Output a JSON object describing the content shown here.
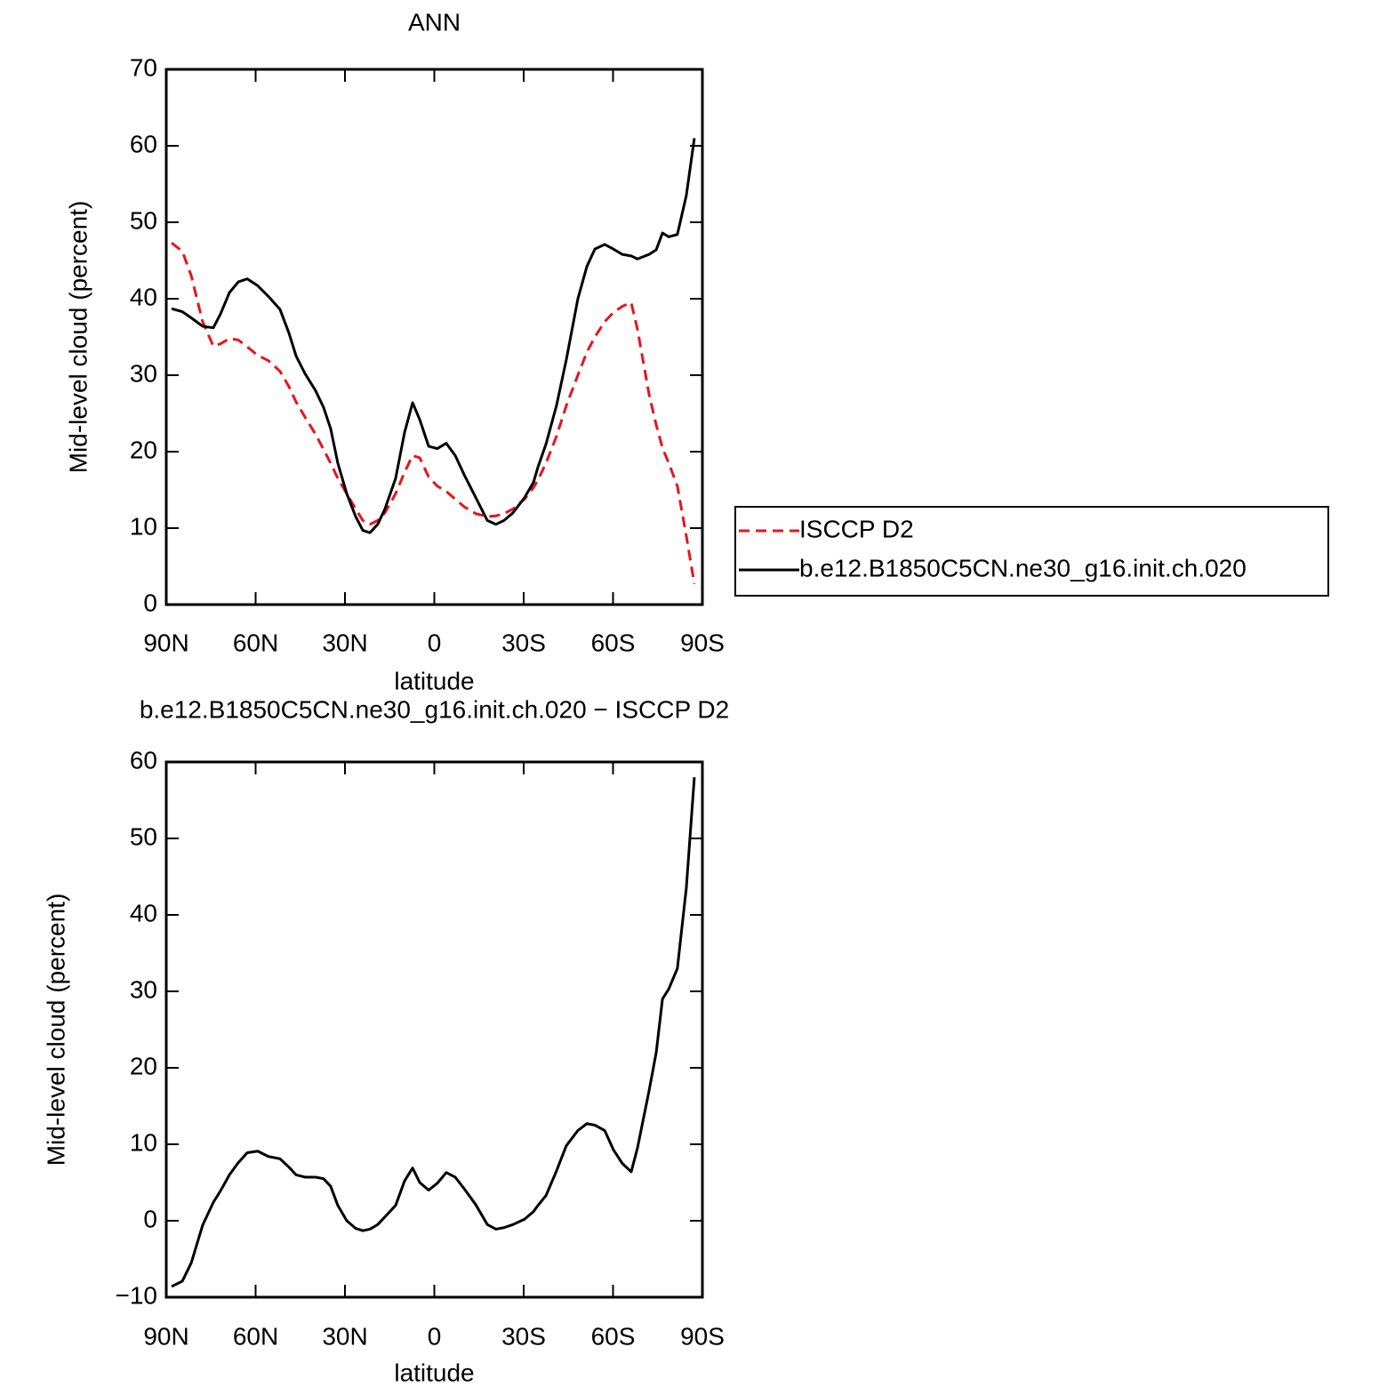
{
  "chart_data": [
    {
      "type": "line",
      "title": "ANN",
      "xlabel": "latitude",
      "ylabel": "Mid-level cloud (percent)",
      "xlim": [
        90,
        -90
      ],
      "xticks": [
        {
          "value": 90,
          "label": "90N"
        },
        {
          "value": 60,
          "label": "60N"
        },
        {
          "value": 30,
          "label": "30N"
        },
        0,
        {
          "value": -30,
          "label": "30S"
        },
        {
          "value": -60,
          "label": "60S"
        },
        {
          "value": -90,
          "label": "90S"
        }
      ],
      "ylim": [
        0,
        70
      ],
      "yticks": [
        0,
        10,
        20,
        30,
        40,
        50,
        60,
        70
      ],
      "legend": "outside right",
      "x": [
        88.2,
        84.6,
        81.6,
        77.8,
        74.2,
        71.8,
        68.8,
        65.8,
        62.8,
        59.3,
        55.7,
        51.8,
        48.8,
        46.4,
        43.4,
        39.9,
        37.2,
        34.8,
        32.4,
        29.4,
        26.4,
        24,
        21.6,
        19,
        16.6,
        13,
        10,
        7.3,
        4.9,
        1.9,
        -1,
        -4,
        -7,
        -10,
        -13.9,
        -17.8,
        -20.7,
        -23.4,
        -26.4,
        -30.3,
        -33.3,
        -34.8,
        -37.5,
        -41,
        -44.3,
        -48.2,
        -51.2,
        -53.9,
        -57.2,
        -60.1,
        -63.1,
        -66.1,
        -68.2,
        -72.1,
        -74.5,
        -76.6,
        -78.7,
        -81.6,
        -84.6,
        -87.3
      ],
      "series": [
        {
          "name": "ISCCP D2",
          "color": "#e8141b",
          "dashed": true,
          "values": [
            47.3,
            46.2,
            43,
            37,
            33.8,
            34.1,
            34.8,
            34.6,
            33.7,
            32.6,
            31.9,
            30.5,
            28.5,
            26.5,
            24.5,
            22.3,
            20.3,
            18.5,
            16.5,
            14.5,
            12.5,
            11,
            10.5,
            11,
            12,
            14.5,
            17.3,
            19.5,
            19.2,
            16.7,
            15.5,
            14.8,
            13.8,
            12.8,
            11.9,
            11.5,
            11.6,
            11.9,
            12.5,
            13.8,
            15.3,
            16.3,
            18.5,
            22,
            26,
            30,
            33,
            35,
            37,
            38.2,
            39,
            39.5,
            36,
            27.5,
            23.5,
            20.5,
            18.5,
            15.5,
            9,
            2.7
          ]
        },
        {
          "name": "b.e12.B1850C5CN.ne30_g16.init.ch.020",
          "color": "#000000",
          "dashed": false,
          "values": [
            38.7,
            38.3,
            37.5,
            36.4,
            36.2,
            38,
            40.8,
            42.2,
            42.6,
            41.7,
            40.3,
            38.6,
            35.5,
            32.5,
            30.2,
            28,
            25.8,
            23,
            18.5,
            14.5,
            11.5,
            9.7,
            9.4,
            10.5,
            12.5,
            16.5,
            22.5,
            26.4,
            24.2,
            20.7,
            20.4,
            21.1,
            19.5,
            17,
            14,
            11,
            10.5,
            11,
            12,
            14,
            16,
            18,
            21,
            26,
            32,
            40,
            44.2,
            46.5,
            47.1,
            46.5,
            45.8,
            45.6,
            45.2,
            45.8,
            46.4,
            48.6,
            48.1,
            48.4,
            53.5,
            61
          ]
        }
      ]
    },
    {
      "type": "line",
      "title": "b.e12.B1850C5CN.ne30_g16.init.ch.020 − ISCCP D2",
      "xlabel": "latitude",
      "ylabel": "Mid-level cloud (percent)",
      "xlim": [
        90,
        -90
      ],
      "xticks": [
        {
          "value": 90,
          "label": "90N"
        },
        {
          "value": 60,
          "label": "60N"
        },
        {
          "value": 30,
          "label": "30N"
        },
        0,
        {
          "value": -30,
          "label": "30S"
        },
        {
          "value": -60,
          "label": "60S"
        },
        {
          "value": -90,
          "label": "90S"
        }
      ],
      "ylim": [
        -10,
        60
      ],
      "yticks": [
        {
          "value": -10,
          "label": "−10"
        },
        0,
        10,
        20,
        30,
        40,
        50,
        60
      ],
      "x": [
        88.2,
        84.6,
        81.6,
        77.8,
        74.2,
        71.8,
        68.8,
        65.8,
        62.8,
        59.3,
        55.7,
        51.8,
        48.8,
        46.4,
        43.4,
        39.9,
        37.2,
        34.8,
        32.4,
        29.4,
        26.4,
        24,
        21.6,
        19,
        16.6,
        13,
        10,
        7.3,
        4.9,
        1.9,
        -1,
        -4,
        -7,
        -10,
        -13.9,
        -17.8,
        -20.7,
        -23.4,
        -26.4,
        -30.3,
        -33.3,
        -34.8,
        -37.5,
        -41,
        -44.3,
        -48.2,
        -51.2,
        -53.9,
        -57.2,
        -60.1,
        -63.1,
        -66.1,
        -68.2,
        -72.1,
        -74.5,
        -76.6,
        -78.7,
        -81.6,
        -84.6,
        -87.3
      ],
      "series": [
        {
          "color": "#000000",
          "dashed": false,
          "values": [
            -8.6,
            -7.9,
            -5.5,
            -0.6,
            2.4,
            3.9,
            6,
            7.6,
            8.9,
            9.1,
            8.4,
            8.1,
            7,
            6,
            5.7,
            5.7,
            5.5,
            4.5,
            2,
            0,
            -1,
            -1.3,
            -1.1,
            -0.5,
            0.5,
            2,
            5.2,
            6.9,
            5,
            4,
            4.9,
            6.3,
            5.7,
            4.2,
            2.1,
            -0.5,
            -1.1,
            -0.9,
            -0.5,
            0.2,
            1.2,
            2,
            3.3,
            6.5,
            9.8,
            11.8,
            12.7,
            12.5,
            11.8,
            9.3,
            7.5,
            6.4,
            9.5,
            17,
            22,
            29,
            30.3,
            33,
            43.5,
            58
          ]
        }
      ]
    }
  ]
}
